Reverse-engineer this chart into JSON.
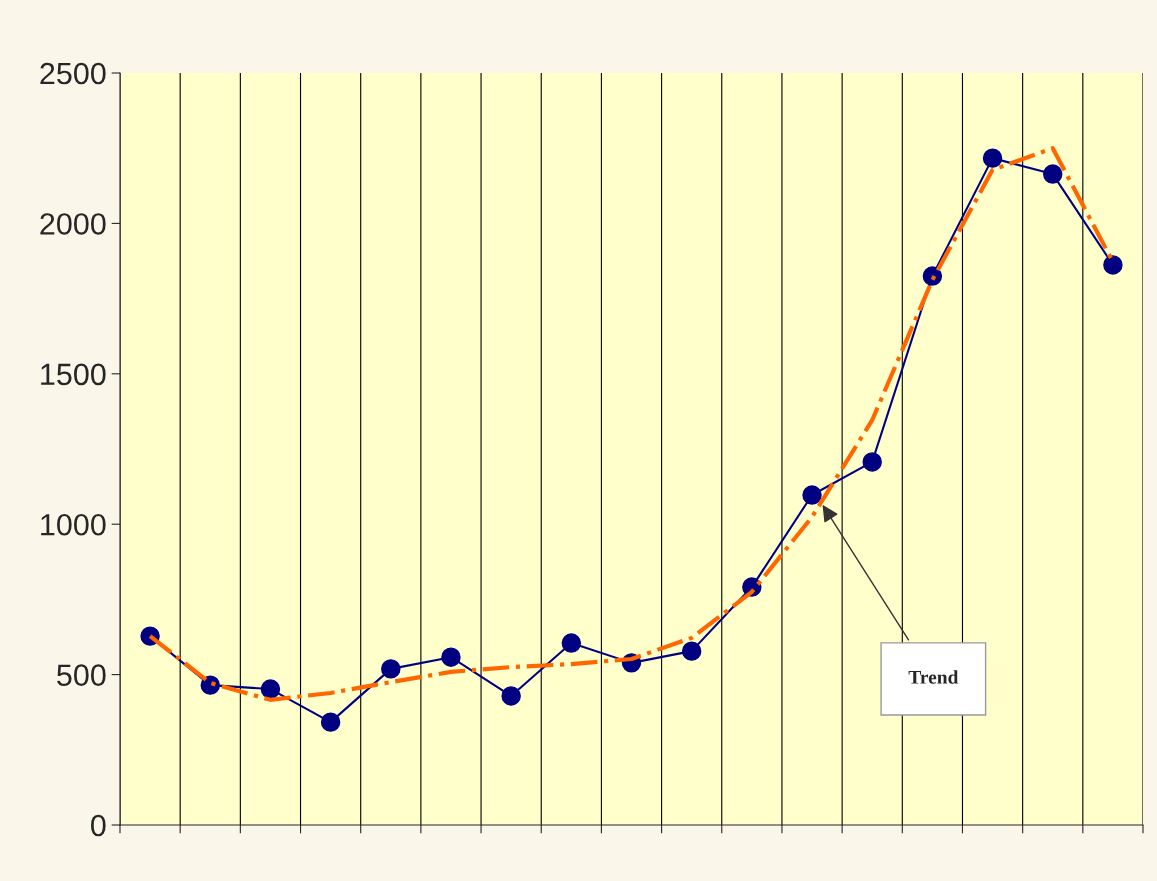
{
  "chart_data": {
    "type": "line",
    "categories": [
      null,
      null,
      null,
      null,
      null,
      null,
      null,
      null,
      null,
      null,
      null,
      null,
      null,
      null,
      null,
      null,
      null
    ],
    "series": [
      {
        "color": "#000080",
        "marker": "circle",
        "line_style": "solid",
        "values": [
          628,
          465,
          452,
          342,
          519,
          558,
          429,
          605,
          539,
          578,
          791,
          1097,
          1207,
          1825,
          2217,
          2164,
          1862
        ]
      },
      {
        "color": "#ff6600",
        "marker": "none",
        "line_style": "dashdot",
        "values": [
          628,
          472,
          416,
          439,
          475,
          509,
          525,
          535,
          552,
          622,
          775,
          1024,
          1346,
          1812,
          2178,
          2250,
          1872
        ]
      }
    ],
    "ylim": [
      0,
      2500
    ],
    "yticks": [
      0,
      500,
      1000,
      1500,
      2000,
      2500
    ],
    "grid": "x",
    "legend": false,
    "annotations": [
      "Trend"
    ]
  }
}
